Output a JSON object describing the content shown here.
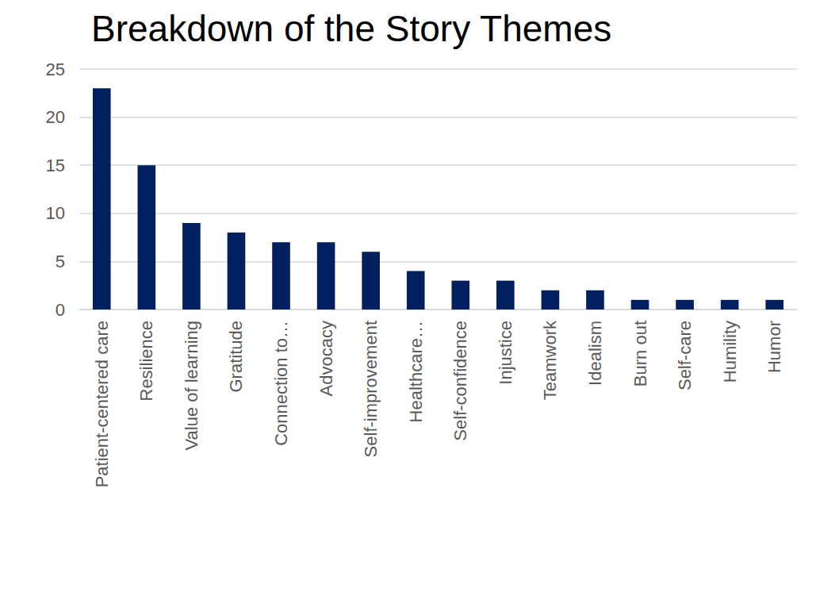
{
  "chart_data": {
    "type": "bar",
    "title": "Breakdown of the Story Themes",
    "categories": [
      "Patient-centered care",
      "Resilience",
      "Value of learning",
      "Gratitude",
      "Connection to…",
      "Advocacy",
      "Self-improvement",
      "Healthcare…",
      "Self-confidence",
      "Injustice",
      "Teamwork",
      "Idealism",
      "Burn out",
      "Self-care",
      "Humility",
      "Humor"
    ],
    "values": [
      23,
      15,
      9,
      8,
      7,
      7,
      6,
      4,
      3,
      3,
      2,
      2,
      1,
      1,
      1,
      1
    ],
    "color": "#002060",
    "ylim": [
      0,
      25
    ],
    "yticks": [
      0,
      5,
      10,
      15,
      20,
      25
    ],
    "grid": true
  }
}
